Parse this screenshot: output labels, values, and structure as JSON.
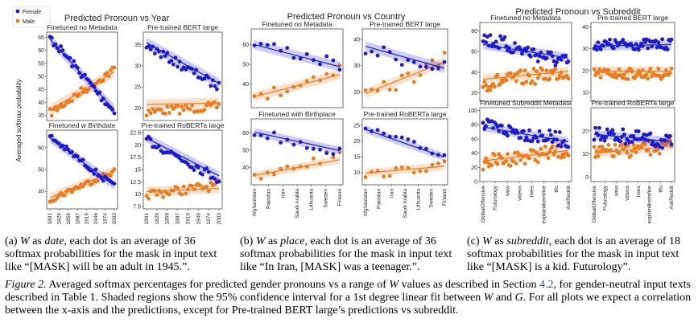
{
  "colors": {
    "female": "#1a1ad4",
    "male": "#f07a1a"
  },
  "figure": {
    "panels": [
      {
        "title": "Predicted Pronoun vs Year",
        "ylabel": "Averaged softmax probability",
        "legend": [
          "Female",
          "Male"
        ],
        "xticks": [
          "1801",
          "1829",
          "1859",
          "1887",
          "1916",
          "1946",
          "1974",
          "2003"
        ],
        "subplots": [
          {
            "title": "Finetuned no Metadata",
            "yticks": [
              35,
              40,
              45,
              50,
              55,
              60,
              65
            ],
            "ylim": [
              33,
              67
            ]
          },
          {
            "title": "Pre-trained BERT large",
            "yticks": [
              20,
              25,
              30,
              35
            ],
            "ylim": [
              17,
              38
            ]
          },
          {
            "title": "Finetuned w Birthdate",
            "yticks": [
              40,
              50,
              60
            ],
            "ylim": [
              32,
              68
            ]
          },
          {
            "title": "Pre-trained RoBERTa large",
            "yticks": [
              7.5,
              10.0,
              12.5,
              15.0,
              17.5,
              20.0,
              22.5
            ],
            "ylim": [
              7,
              23
            ]
          }
        ]
      },
      {
        "title": "Predicted Pronoun vs Country",
        "xticks": [
          "Afghanistan",
          "Pakistan",
          "Iran",
          "Saudi Arabia",
          "Lithuania",
          "Sweden",
          "Finland"
        ],
        "subplots": [
          {
            "title": "Finetuned no Metadata",
            "yticks": [
              40,
              50,
              60
            ],
            "ylim": [
              28,
              68
            ]
          },
          {
            "title": "Pre-trained BERT large",
            "yticks": [
              20,
              30,
              40
            ],
            "ylim": [
              14,
              44
            ]
          },
          {
            "title": "Finetuned with Birthplace",
            "yticks": [
              40,
              50,
              60
            ],
            "ylim": [
              30,
              68
            ]
          },
          {
            "title": "Pre-trained RoBERTa large",
            "yticks": [
              10,
              15,
              20,
              25
            ],
            "ylim": [
              6,
              27
            ]
          }
        ]
      },
      {
        "title": "Predicted Pronoun vs Subreddit",
        "xticks": [
          "GlobalOffensive",
          "Futurology",
          "wow",
          "videos",
          "trees",
          "explainlikeimfive",
          "tifu",
          "AskReddit"
        ],
        "subplots": [
          {
            "title": "Finetuned no Metadata",
            "yticks": [
              20,
              40,
              60,
              80
            ],
            "ylim": [
              12,
              88
            ]
          },
          {
            "title": "Pre-trained BERT large",
            "yticks": [
              10,
              20,
              30,
              40
            ],
            "ylim": [
              6,
              42
            ]
          },
          {
            "title": "Finetuned Subreddit Metadata",
            "yticks": [
              0,
              20,
              40,
              60,
              80,
              100
            ],
            "ylim": [
              0,
              104
            ]
          },
          {
            "title": "Pre-trained RoBERTa large",
            "yticks": [
              0,
              10,
              20
            ],
            "ylim": [
              -2,
              30
            ]
          }
        ]
      }
    ]
  },
  "captions": {
    "a": {
      "label": "(a)",
      "var": "W",
      "as": "as",
      "what": "date",
      "rest": ", each dot is an average of 36 softmax probabilities for the mask in input text like “[MASK] will be an adult in 1945.”."
    },
    "b": {
      "label": "(b)",
      "var": "W",
      "as": "as",
      "what": "place",
      "rest": ", each dot is an average of 36 softmax probabilities for the mask in input text like “In Iran, [MASK] was a teenager.”."
    },
    "c": {
      "label": "(c)",
      "var": "W",
      "as": "as",
      "what": "subreddit",
      "rest": ", each dot is an average of 18 softmax probabilities for the mask in input text like “[MASK] is a kid. Futurology”."
    },
    "main": {
      "label": "Figure 2.",
      "t1": " Averaged softmax percentages for predicted gender pronouns vs a range of ",
      "v1": "W",
      "t2": " values as described in Section ",
      "section": "4.2",
      "t3": ", for gender-neutral input texts described in Table 1. Shaded regions show the 95% confidence interval for a 1st degree linear fit between ",
      "v2": "W",
      "t4": " and ",
      "v3": "G",
      "t5": ". For all plots we expect a correlation between the x-axis and the predictions, except for Pre-trained BERT large’s predictions vs subreddit."
    }
  }
}
